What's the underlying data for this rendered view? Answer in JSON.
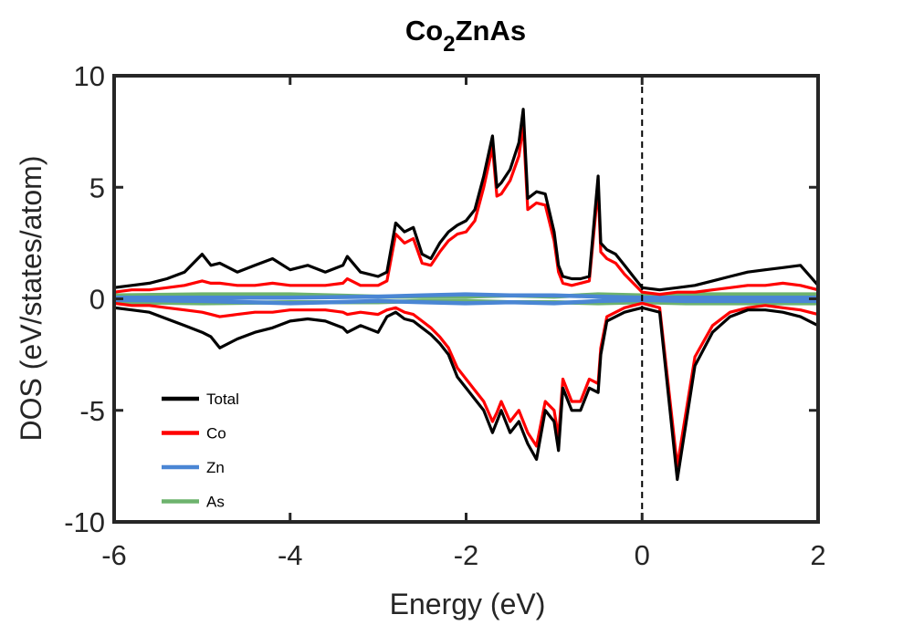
{
  "chart_data": {
    "type": "line",
    "title_main": "Co",
    "title_sub": "2",
    "title_rest": "ZnAs",
    "xlabel": "Energy (eV)",
    "ylabel": "DOS (eV/states/atom)",
    "xlim": [
      -6,
      2
    ],
    "ylim": [
      -10,
      10
    ],
    "xticks": [
      -6,
      -4,
      -2,
      0,
      2
    ],
    "xtick_labels": [
      "-6",
      "-4",
      "-2",
      "0",
      "2"
    ],
    "yticks": [
      -10,
      -5,
      0,
      5,
      10
    ],
    "ytick_labels": [
      "-10",
      "-5",
      "0",
      "5",
      "10"
    ],
    "fermi_level": 0,
    "grid": false,
    "legend_position": "bottom-left",
    "series": [
      {
        "name": "Total",
        "color": "#000000",
        "x": [
          -6,
          -5.8,
          -5.6,
          -5.4,
          -5.2,
          -5,
          -4.9,
          -4.8,
          -4.6,
          -4.4,
          -4.2,
          -4,
          -3.8,
          -3.6,
          -3.4,
          -3.35,
          -3.2,
          -3,
          -2.9,
          -2.8,
          -2.7,
          -2.6,
          -2.5,
          -2.4,
          -2.3,
          -2.2,
          -2.1,
          -2,
          -1.9,
          -1.8,
          -1.7,
          -1.65,
          -1.6,
          -1.5,
          -1.4,
          -1.35,
          -1.3,
          -1.2,
          -1.1,
          -1,
          -0.95,
          -0.9,
          -0.8,
          -0.7,
          -0.6,
          -0.5,
          -0.47,
          -0.4,
          -0.3,
          -0.2,
          -0.1,
          0,
          0.2,
          0.4,
          0.6,
          0.8,
          1,
          1.2,
          1.4,
          1.6,
          1.8,
          2
        ],
        "up": [
          0.5,
          0.6,
          0.7,
          0.9,
          1.2,
          2.0,
          1.5,
          1.6,
          1.2,
          1.5,
          1.8,
          1.3,
          1.5,
          1.2,
          1.5,
          1.9,
          1.2,
          1.0,
          1.2,
          3.4,
          3.0,
          3.2,
          2.0,
          1.8,
          2.5,
          3.0,
          3.3,
          3.5,
          4.0,
          5.5,
          7.3,
          5.0,
          5.2,
          5.8,
          7.0,
          8.5,
          4.5,
          4.8,
          4.7,
          3.0,
          1.5,
          1.0,
          0.9,
          0.9,
          1.0,
          5.5,
          2.5,
          2.2,
          2.0,
          1.5,
          1.0,
          0.5,
          0.4,
          0.5,
          0.6,
          0.8,
          1.0,
          1.2,
          1.3,
          1.4,
          1.5,
          0.6
        ],
        "dn": [
          -0.4,
          -0.5,
          -0.6,
          -0.9,
          -1.2,
          -1.5,
          -1.7,
          -2.2,
          -1.8,
          -1.5,
          -1.3,
          -1.0,
          -0.9,
          -1.0,
          -1.3,
          -1.5,
          -1.2,
          -1.5,
          -0.8,
          -0.6,
          -0.9,
          -1.0,
          -1.3,
          -1.6,
          -2.0,
          -2.5,
          -3.5,
          -4.0,
          -4.5,
          -5.0,
          -6.0,
          -5.5,
          -5.0,
          -6.0,
          -5.5,
          -6.0,
          -6.5,
          -7.2,
          -5.0,
          -5.5,
          -6.8,
          -4.0,
          -5.0,
          -5.0,
          -4.0,
          -4.2,
          -2.5,
          -1.0,
          -0.8,
          -0.6,
          -0.5,
          -0.4,
          -0.6,
          -8.1,
          -3.0,
          -1.5,
          -0.8,
          -0.5,
          -0.5,
          -0.6,
          -0.8,
          -1.2
        ]
      },
      {
        "name": "Co",
        "color": "#ff0000",
        "x": [
          -6,
          -5.8,
          -5.6,
          -5.4,
          -5.2,
          -5,
          -4.9,
          -4.8,
          -4.6,
          -4.4,
          -4.2,
          -4,
          -3.8,
          -3.6,
          -3.4,
          -3.35,
          -3.2,
          -3,
          -2.9,
          -2.8,
          -2.7,
          -2.6,
          -2.5,
          -2.4,
          -2.3,
          -2.2,
          -2.1,
          -2,
          -1.9,
          -1.8,
          -1.7,
          -1.65,
          -1.6,
          -1.5,
          -1.4,
          -1.35,
          -1.3,
          -1.2,
          -1.1,
          -1,
          -0.95,
          -0.9,
          -0.8,
          -0.7,
          -0.6,
          -0.5,
          -0.47,
          -0.4,
          -0.3,
          -0.2,
          -0.1,
          0,
          0.2,
          0.4,
          0.6,
          0.8,
          1,
          1.2,
          1.4,
          1.6,
          1.8,
          2
        ],
        "up": [
          0.3,
          0.4,
          0.4,
          0.5,
          0.6,
          0.8,
          0.7,
          0.7,
          0.6,
          0.6,
          0.7,
          0.6,
          0.6,
          0.6,
          0.7,
          0.9,
          0.6,
          0.6,
          0.8,
          2.9,
          2.5,
          2.7,
          1.6,
          1.5,
          2.1,
          2.6,
          2.9,
          3.0,
          3.5,
          5.0,
          6.8,
          4.6,
          4.7,
          5.3,
          6.4,
          7.8,
          4.0,
          4.3,
          4.2,
          2.6,
          1.2,
          0.7,
          0.6,
          0.7,
          0.8,
          5.0,
          2.1,
          1.8,
          1.6,
          1.1,
          0.7,
          0.3,
          0.2,
          0.3,
          0.3,
          0.4,
          0.5,
          0.6,
          0.6,
          0.7,
          0.6,
          0.4
        ],
        "dn": [
          -0.2,
          -0.3,
          -0.3,
          -0.4,
          -0.5,
          -0.6,
          -0.7,
          -0.8,
          -0.7,
          -0.6,
          -0.6,
          -0.5,
          -0.5,
          -0.5,
          -0.6,
          -0.7,
          -0.6,
          -0.7,
          -0.5,
          -0.4,
          -0.6,
          -0.7,
          -1.0,
          -1.3,
          -1.7,
          -2.2,
          -3.1,
          -3.6,
          -4.1,
          -4.6,
          -5.5,
          -5.1,
          -4.6,
          -5.5,
          -5.0,
          -5.5,
          -6.0,
          -6.6,
          -4.6,
          -5.0,
          -6.2,
          -3.6,
          -4.6,
          -4.6,
          -3.6,
          -3.8,
          -2.2,
          -0.8,
          -0.6,
          -0.4,
          -0.3,
          -0.2,
          -0.4,
          -7.5,
          -2.6,
          -1.2,
          -0.6,
          -0.4,
          -0.3,
          -0.4,
          -0.5,
          -0.7
        ]
      },
      {
        "name": "Zn",
        "color": "#4a86d4",
        "x": [
          -6,
          -5,
          -4,
          -3,
          -2.5,
          -2,
          -1.5,
          -1,
          -0.5,
          0,
          0.5,
          1,
          1.5,
          2
        ],
        "up": [
          0.05,
          0.05,
          0.05,
          0.1,
          0.15,
          0.2,
          0.15,
          0.15,
          0.1,
          0.05,
          0.05,
          0.05,
          0.05,
          0.05
        ],
        "dn": [
          -0.05,
          -0.1,
          -0.2,
          -0.1,
          -0.15,
          -0.2,
          -0.15,
          -0.2,
          -0.1,
          -0.05,
          -0.1,
          -0.1,
          -0.1,
          -0.1
        ]
      },
      {
        "name": "As",
        "color": "#6db36d",
        "x": [
          -6,
          -5,
          -4,
          -3,
          -2.5,
          -2,
          -1.5,
          -1,
          -0.5,
          0,
          0.5,
          1,
          1.5,
          2
        ],
        "up": [
          0.15,
          0.2,
          0.2,
          0.1,
          0.1,
          0.1,
          0.15,
          0.1,
          0.2,
          0.15,
          0.2,
          0.2,
          0.2,
          0.2
        ],
        "dn": [
          -0.15,
          -0.2,
          -0.15,
          -0.15,
          -0.1,
          -0.1,
          -0.15,
          -0.15,
          -0.2,
          -0.15,
          -0.2,
          -0.2,
          -0.2,
          -0.2
        ]
      }
    ]
  }
}
